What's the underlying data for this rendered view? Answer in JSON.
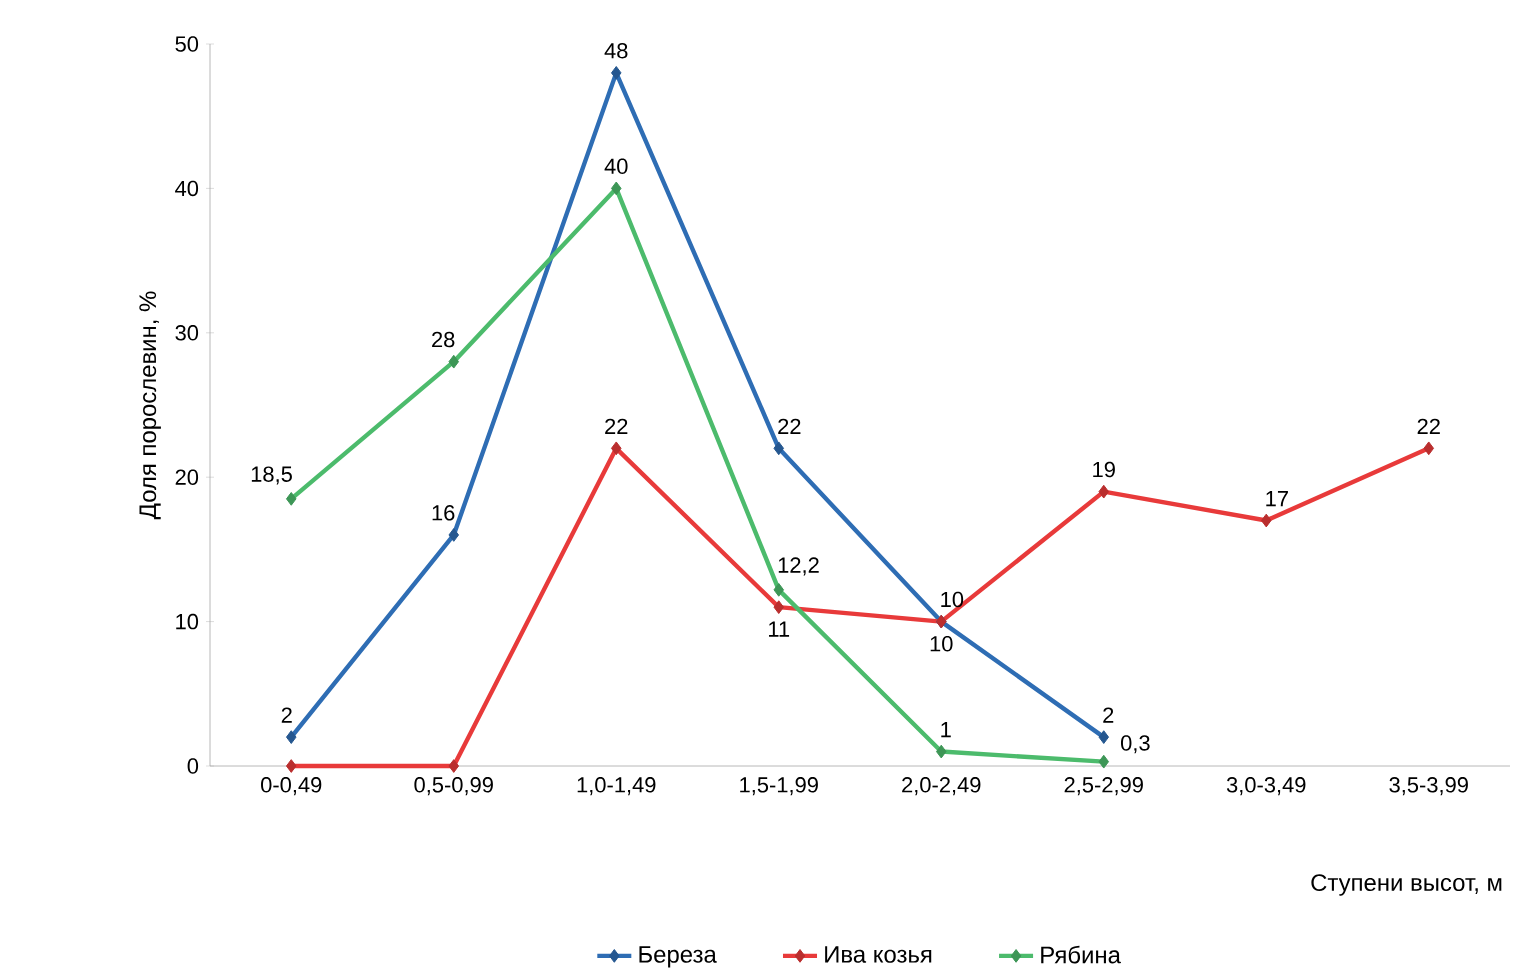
{
  "chart_data": {
    "type": "line",
    "xlabel": "Ступени высот, м",
    "ylabel": "Доля порослевин, %",
    "categories": [
      "0-0,49",
      "0,5-0,99",
      "1,0-1,49",
      "1,5-1,99",
      "2,0-2,49",
      "2,5-2,99",
      "3,0-3,49",
      "3,5-3,99"
    ],
    "ylim": [
      0,
      50
    ],
    "yticks": [
      0,
      10,
      20,
      30,
      40,
      50
    ],
    "grid": false,
    "legend": "bottom",
    "marker": "diamond",
    "line_style": "solid",
    "series": [
      {
        "name": "Береза",
        "color": "#2e6db4",
        "values": [
          2,
          16,
          48,
          22,
          10,
          2,
          null,
          null
        ],
        "value_labels": [
          "2",
          "16",
          "48",
          "22",
          "10",
          "2",
          null,
          null
        ]
      },
      {
        "name": "Ива козья",
        "color": "#e83a3a",
        "values": [
          0,
          0,
          22,
          11,
          10,
          19,
          17,
          22
        ],
        "value_labels": [
          null,
          null,
          "22",
          "11",
          "10",
          "19",
          "17",
          "22"
        ]
      },
      {
        "name": "Рябина",
        "color": "#4cbb6c",
        "values": [
          18.5,
          28,
          40,
          12.2,
          1,
          0.3,
          null,
          null
        ],
        "value_labels": [
          "18,5",
          "28",
          "40",
          "12,2",
          "1",
          "0,3",
          null,
          null
        ]
      }
    ]
  }
}
